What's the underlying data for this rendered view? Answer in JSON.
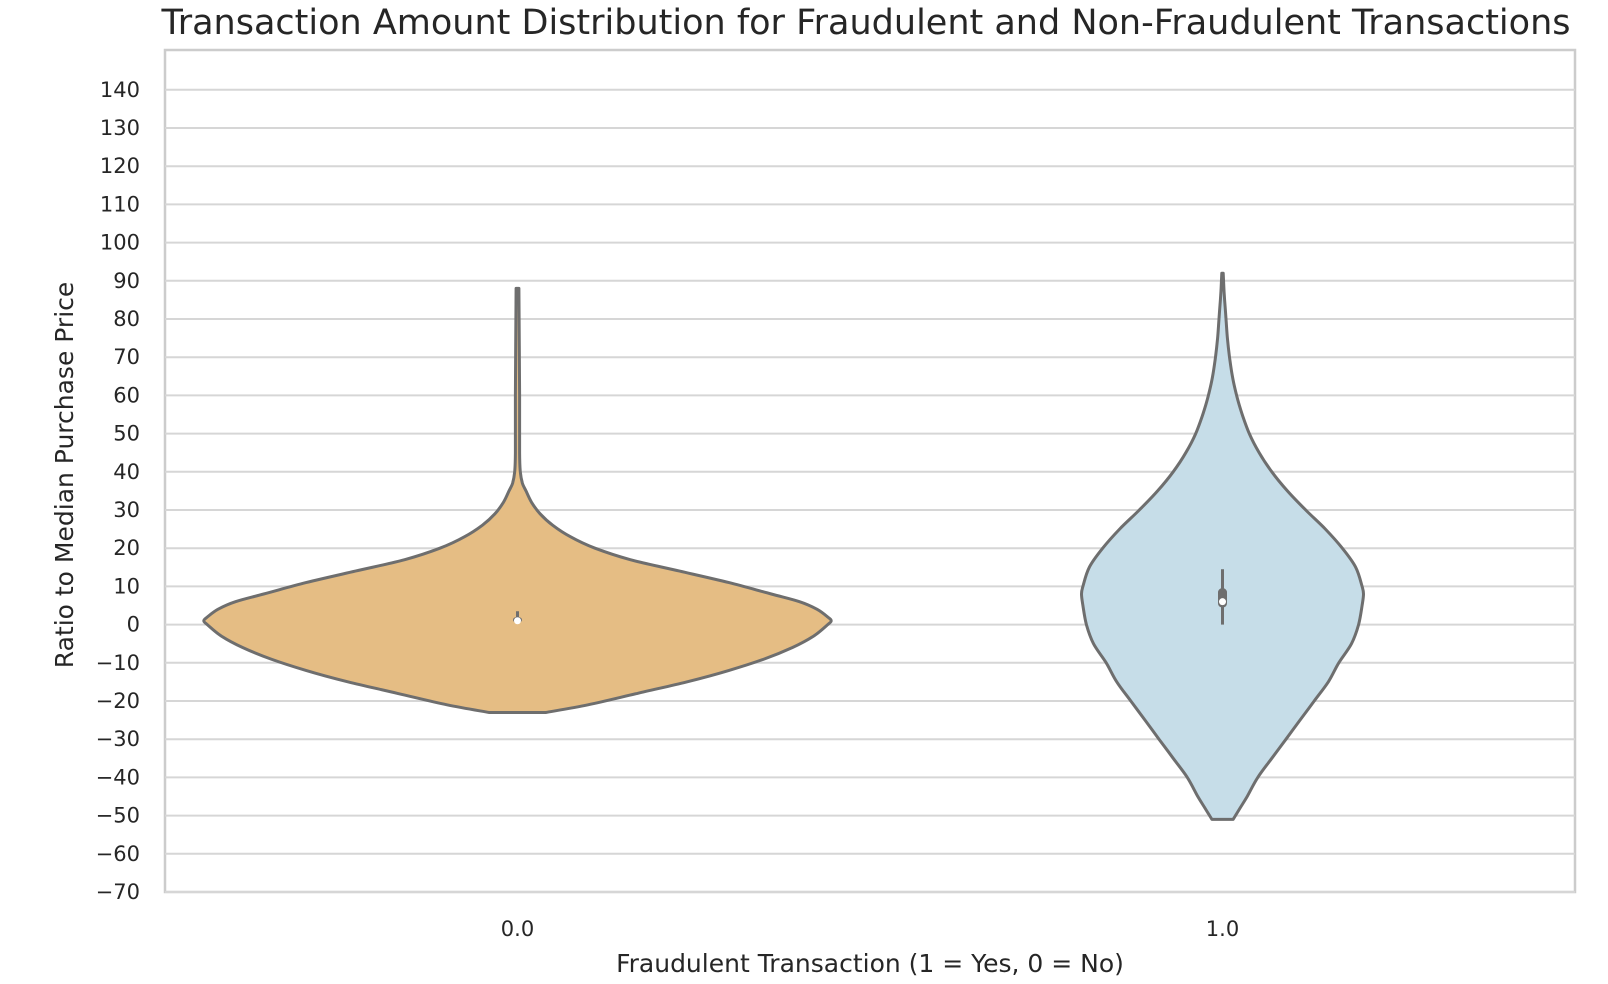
{
  "chart_data": {
    "type": "violin",
    "title": "Transaction Amount Distribution for Fraudulent and Non-Fraudulent Transactions",
    "xlabel": "Fraudulent Transaction (1 = Yes, 0 = No)",
    "ylabel": "Ratio to Median Purchase Price",
    "ylim": [
      -70,
      150
    ],
    "yticks": [
      -70,
      -60,
      -50,
      -40,
      -30,
      -20,
      -10,
      0,
      10,
      20,
      30,
      40,
      50,
      60,
      70,
      80,
      90,
      100,
      110,
      120,
      130,
      140
    ],
    "ytick_labels": [
      "−70",
      "−60",
      "−50",
      "−40",
      "−30",
      "−20",
      "−10",
      "0",
      "10",
      "20",
      "30",
      "40",
      "50",
      "60",
      "70",
      "80",
      "90",
      "100",
      "110",
      "120",
      "130",
      "140"
    ],
    "grid": true,
    "categories": [
      "0.0",
      "1.0"
    ],
    "series": [
      {
        "category": "0.0",
        "color": "#e5bd84",
        "density": {
          "y": [
            -23,
            -21,
            -18,
            -15,
            -12,
            -9,
            -6,
            -3,
            0,
            1,
            2,
            4,
            6,
            8,
            11,
            14,
            17,
            20,
            23,
            26,
            29,
            32,
            35,
            37,
            40,
            45,
            60,
            88
          ],
          "half_width": [
            0.04,
            0.1,
            0.17,
            0.24,
            0.3,
            0.35,
            0.39,
            0.42,
            0.44,
            0.445,
            0.44,
            0.425,
            0.4,
            0.36,
            0.3,
            0.23,
            0.16,
            0.11,
            0.075,
            0.05,
            0.032,
            0.02,
            0.012,
            0.007,
            0.004,
            0.003,
            0.003,
            0.002
          ]
        },
        "box": {
          "q1": 0.5,
          "median": 1.0,
          "q3": 2.0,
          "whisker_low": 0.2,
          "whisker_high": 3.5
        }
      },
      {
        "category": "1.0",
        "color": "#c6dde8",
        "density": {
          "y": [
            -51,
            -48,
            -45,
            -40,
            -35,
            -30,
            -25,
            -20,
            -15,
            -10,
            -5,
            0,
            5,
            8,
            10,
            15,
            20,
            25,
            30,
            35,
            40,
            45,
            50,
            55,
            60,
            65,
            70,
            75,
            80,
            85,
            88,
            92
          ],
          "half_width": [
            0.015,
            0.025,
            0.035,
            0.05,
            0.07,
            0.09,
            0.11,
            0.13,
            0.15,
            0.165,
            0.183,
            0.193,
            0.198,
            0.2,
            0.198,
            0.189,
            0.17,
            0.146,
            0.118,
            0.092,
            0.07,
            0.052,
            0.038,
            0.028,
            0.02,
            0.014,
            0.01,
            0.007,
            0.005,
            0.003,
            0.002,
            0.001
          ]
        },
        "box": {
          "q1": 4.5,
          "median": 6.0,
          "q3": 9.5,
          "whisker_low": 0.0,
          "whisker_high": 14.5
        }
      }
    ]
  }
}
